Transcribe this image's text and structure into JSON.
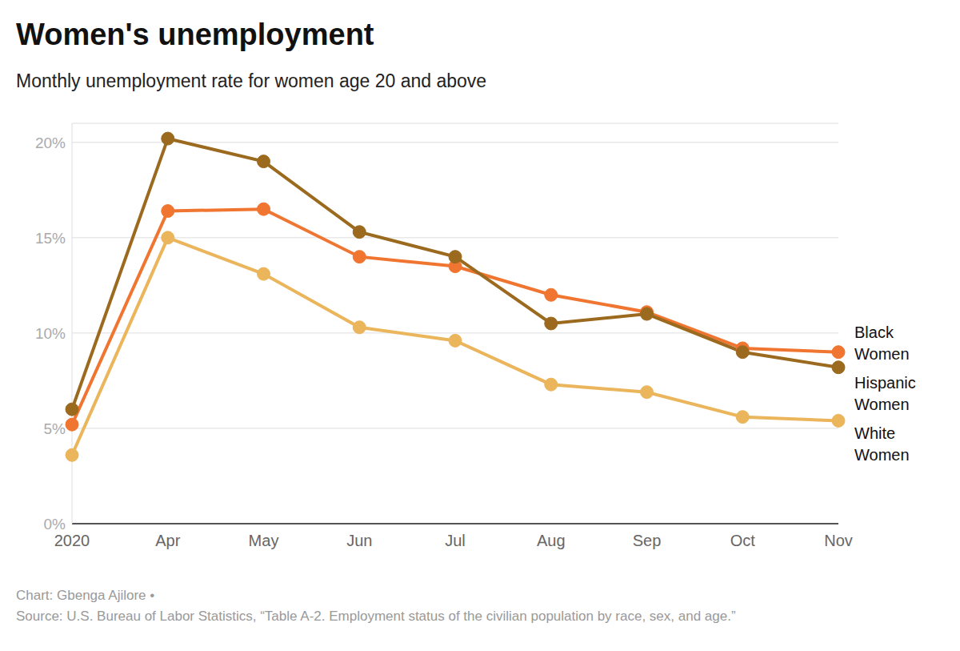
{
  "chart_data": {
    "type": "line",
    "title": "Women's unemployment",
    "subtitle": "Monthly unemployment rate for women age 20 and above",
    "credit": "Chart: Gbenga Ajilore •",
    "source": "Source: U.S. Bureau of Labor Statistics, “Table A-2. Employment status of the civilian population by race, sex, and age.”",
    "categories": [
      "2020",
      "Apr",
      "May",
      "Jun",
      "Jul",
      "Aug",
      "Sep",
      "Oct",
      "Nov"
    ],
    "series": [
      {
        "name": "White Women",
        "color": "#ebb55b",
        "values": [
          3.6,
          15.0,
          13.1,
          10.3,
          9.6,
          7.3,
          6.9,
          5.6,
          5.4
        ]
      },
      {
        "name": "Black Women",
        "color": "#f07530",
        "values": [
          5.2,
          16.4,
          16.5,
          14.0,
          13.5,
          12.0,
          11.1,
          9.2,
          9.0
        ]
      },
      {
        "name": "Hispanic Women",
        "color": "#9b6a1f",
        "values": [
          6.0,
          20.2,
          19.0,
          15.3,
          14.0,
          10.5,
          11.0,
          9.0,
          8.2
        ]
      }
    ],
    "ylim": [
      0,
      21
    ],
    "yticks": [
      {
        "value": 0,
        "label": "0%"
      },
      {
        "value": 5,
        "label": "5%"
      },
      {
        "value": 10,
        "label": "10%"
      },
      {
        "value": 15,
        "label": "15%"
      },
      {
        "value": 20,
        "label": "20%"
      }
    ],
    "grid": true,
    "marker": "circle"
  }
}
